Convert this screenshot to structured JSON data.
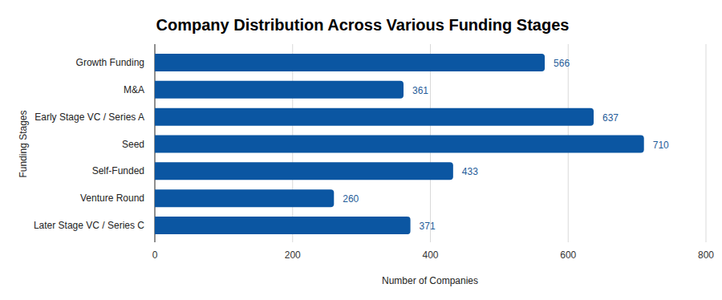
{
  "chart_data": {
    "type": "bar",
    "orientation": "horizontal",
    "title": "Company Distribution Across Various Funding Stages",
    "x_label": "Number of Companies",
    "y_label": "Funding Stages",
    "categories": [
      "Growth Funding",
      "M&A",
      "Early Stage VC / Series A",
      "Seed",
      "Self-Funded",
      "Venture Round",
      "Later Stage VC / Series C"
    ],
    "values": [
      566,
      361,
      637,
      710,
      433,
      260,
      371
    ],
    "color": "#0b56a2",
    "xlim": [
      0,
      800
    ],
    "xticks": [
      0,
      200,
      400,
      600,
      800
    ],
    "grid": true,
    "data_labels": true
  }
}
